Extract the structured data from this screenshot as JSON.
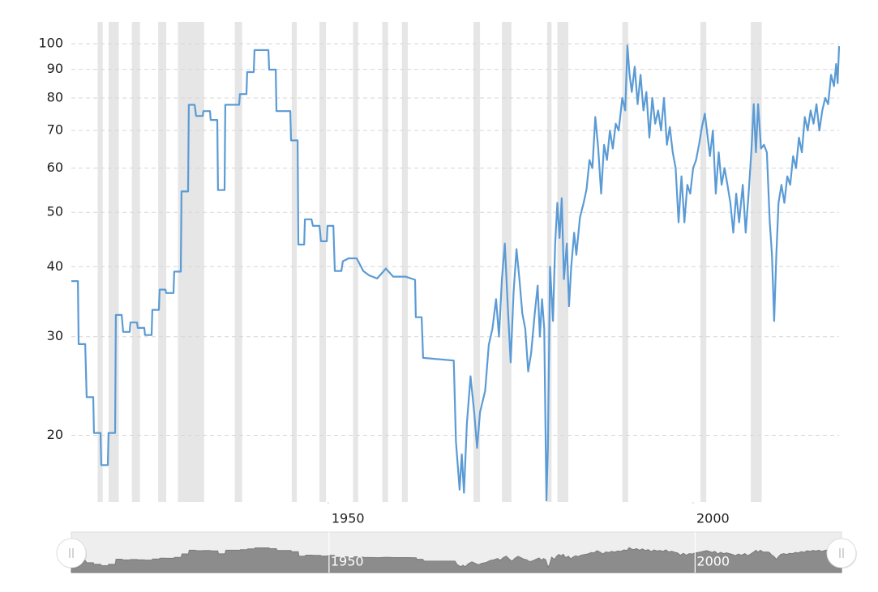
{
  "chart_data": {
    "type": "line",
    "log_scale": true,
    "grid": true,
    "xlim": [
      1914.8,
      2020.0
    ],
    "ylim": [
      15.2,
      109.4
    ],
    "xticks": [
      1950,
      2000
    ],
    "yticks": [
      20,
      30,
      40,
      50,
      60,
      70,
      80,
      90,
      100
    ],
    "shaded_periods": [
      [
        1918.4,
        1919.1
      ],
      [
        1919.9,
        1921.3
      ],
      [
        1923.1,
        1924.2
      ],
      [
        1926.7,
        1927.8
      ],
      [
        1929.4,
        1933.0
      ],
      [
        1937.2,
        1938.2
      ],
      [
        1945.0,
        1945.7
      ],
      [
        1948.8,
        1949.7
      ],
      [
        1953.4,
        1954.1
      ],
      [
        1957.4,
        1958.2
      ],
      [
        1960.1,
        1960.9
      ],
      [
        1969.9,
        1970.8
      ],
      [
        1973.8,
        1975.1
      ],
      [
        1980.0,
        1980.6
      ],
      [
        1981.4,
        1982.9
      ],
      [
        1990.3,
        1991.1
      ],
      [
        2001.0,
        2001.8
      ],
      [
        2007.9,
        2009.4
      ]
    ],
    "shade_color": "#e6e6e6",
    "x": [
      1914.8,
      1915.7,
      1915.8,
      1916.7,
      1916.9,
      1917.8,
      1917.9,
      1918.8,
      1918.9,
      1919.8,
      1919.9,
      1920.8,
      1920.9,
      1921.7,
      1921.9,
      1922.8,
      1922.9,
      1923.8,
      1923.9,
      1924.8,
      1924.9,
      1925.8,
      1925.9,
      1926.8,
      1926.9,
      1927.7,
      1927.8,
      1928.8,
      1928.9,
      1929.8,
      1929.9,
      1930.8,
      1930.9,
      1931.7,
      1931.9,
      1932.8,
      1932.9,
      1933.8,
      1933.9,
      1934.8,
      1934.9,
      1935.8,
      1935.9,
      1937.8,
      1937.9,
      1938.8,
      1938.9,
      1939.8,
      1939.9,
      1941.8,
      1941.9,
      1942.8,
      1942.9,
      1944.8,
      1944.9,
      1945.8,
      1945.9,
      1946.7,
      1946.8,
      1947.7,
      1947.9,
      1948.8,
      1949.0,
      1949.8,
      1949.9,
      1950.7,
      1950.9,
      1951.8,
      1952.0,
      1952.8,
      1953.9,
      1954.8,
      1955.6,
      1956.7,
      1957.9,
      1958.9,
      1960.6,
      1961.9,
      1962.0,
      1962.8,
      1963.0,
      1967.2,
      1967.5,
      1968.0,
      1968.3,
      1968.6,
      1969.0,
      1969.5,
      1970.0,
      1970.4,
      1970.8,
      1971.5,
      1972.0,
      1972.5,
      1973.0,
      1973.4,
      1973.8,
      1974.2,
      1974.6,
      1975.0,
      1975.4,
      1975.8,
      1976.2,
      1976.6,
      1977.0,
      1977.4,
      1977.8,
      1978.3,
      1978.7,
      1979.0,
      1979.3,
      1979.6,
      1979.9,
      1980.1,
      1980.4,
      1980.8,
      1981.1,
      1981.4,
      1981.7,
      1982.0,
      1982.3,
      1982.7,
      1983.0,
      1983.3,
      1983.7,
      1984.0,
      1984.5,
      1985.0,
      1985.4,
      1985.8,
      1986.2,
      1986.6,
      1987.0,
      1987.4,
      1987.8,
      1988.2,
      1988.6,
      1989.0,
      1989.4,
      1989.8,
      1990.3,
      1990.7,
      1991.0,
      1991.3,
      1991.6,
      1992.0,
      1992.4,
      1992.8,
      1993.2,
      1993.6,
      1994.0,
      1994.4,
      1994.8,
      1995.2,
      1995.6,
      1996.0,
      1996.4,
      1996.8,
      1997.2,
      1997.6,
      1998.0,
      1998.4,
      1998.8,
      1999.2,
      1999.6,
      2000.0,
      2000.4,
      2000.8,
      2001.2,
      2001.6,
      2002.0,
      2002.3,
      2002.7,
      2003.1,
      2003.5,
      2003.9,
      2004.3,
      2004.7,
      2005.1,
      2005.5,
      2005.9,
      2006.3,
      2006.8,
      2007.2,
      2007.6,
      2008.0,
      2008.3,
      2008.6,
      2008.9,
      2009.3,
      2009.7,
      2010.1,
      2010.5,
      2010.8,
      2011.1,
      2011.4,
      2011.7,
      2012.1,
      2012.5,
      2012.9,
      2013.3,
      2013.7,
      2014.1,
      2014.5,
      2014.9,
      2015.3,
      2015.7,
      2016.1,
      2016.5,
      2016.9,
      2017.3,
      2017.7,
      2018.1,
      2018.5,
      2018.9,
      2019.3,
      2019.6,
      2019.8,
      2020.0
    ],
    "series": [
      {
        "color": "#5b9bd5",
        "values": [
          37.7,
          37.7,
          29.1,
          29.1,
          23.4,
          23.4,
          20.2,
          20.2,
          17.7,
          17.7,
          20.2,
          20.2,
          32.8,
          32.8,
          30.6,
          30.6,
          31.8,
          31.8,
          31.1,
          31.1,
          30.2,
          30.2,
          33.5,
          33.5,
          36.4,
          36.4,
          35.9,
          35.9,
          39.2,
          39.2,
          54.5,
          54.5,
          77.8,
          77.8,
          74.3,
          74.3,
          75.8,
          75.8,
          73.1,
          73.1,
          54.8,
          54.8,
          77.8,
          77.8,
          81.3,
          81.3,
          89.0,
          89.0,
          97.4,
          97.4,
          89.9,
          89.9,
          75.8,
          75.8,
          67.2,
          67.2,
          43.8,
          43.8,
          48.6,
          48.6,
          47.3,
          47.3,
          44.4,
          44.4,
          47.3,
          47.3,
          39.3,
          39.3,
          40.9,
          41.4,
          41.4,
          39.3,
          38.6,
          38.1,
          39.7,
          38.4,
          38.4,
          37.9,
          32.5,
          32.5,
          27.5,
          27.2,
          19.5,
          16.0,
          18.5,
          15.8,
          21.0,
          25.5,
          22,
          19.0,
          22,
          24,
          29,
          31,
          35,
          30,
          38,
          44,
          34,
          27,
          36,
          43,
          38,
          33,
          31,
          26,
          28,
          33,
          37,
          30,
          35,
          31,
          15.3,
          19,
          40,
          32,
          44,
          52,
          45,
          53,
          38,
          44,
          34,
          40,
          46,
          42,
          49,
          52,
          55,
          62,
          60,
          74,
          65,
          54,
          66,
          62,
          70,
          65,
          72,
          70,
          80,
          76,
          99.3,
          88,
          82,
          91,
          78,
          88,
          76,
          82,
          68,
          80,
          72,
          76,
          70,
          80,
          66,
          71,
          64,
          60,
          48,
          58,
          48,
          56,
          54,
          60,
          62,
          66,
          71,
          75,
          68,
          63,
          70,
          54,
          64,
          56,
          60,
          56,
          52,
          46,
          54,
          48,
          56,
          46,
          54,
          65,
          78,
          64,
          78,
          65,
          66,
          64,
          48,
          42,
          32,
          42,
          52,
          56,
          52,
          58,
          56,
          63,
          60,
          68,
          64,
          74,
          70,
          76,
          72,
          78,
          70,
          76,
          80,
          78,
          88,
          84,
          92,
          85,
          99
        ]
      }
    ]
  }
}
